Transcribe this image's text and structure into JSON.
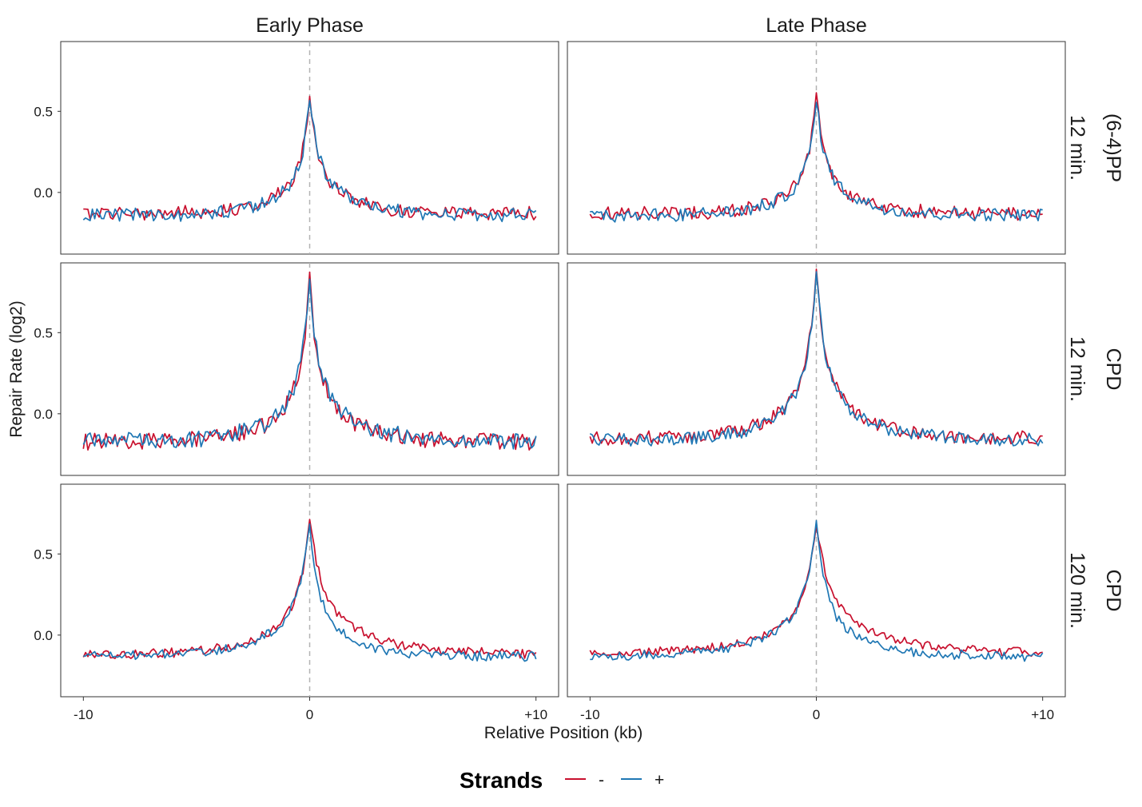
{
  "chart_data": {
    "type": "line",
    "facet_cols": [
      "Early Phase",
      "Late Phase"
    ],
    "facet_rows": [
      [
        "(6-4)PP",
        "12 min."
      ],
      [
        "CPD",
        "12 min."
      ],
      [
        "CPD",
        "120 min."
      ]
    ],
    "xlabel": "Relative Position (kb)",
    "ylabel": "Repair Rate (log2)",
    "x_ticks": [
      {
        "value": -10,
        "label": "-10"
      },
      {
        "value": 0,
        "label": "0"
      },
      {
        "value": 10,
        "label": "+10"
      }
    ],
    "y_ticks": [
      {
        "value": 0.0,
        "label": "0.0"
      },
      {
        "value": 0.5,
        "label": "0.5"
      }
    ],
    "xlim": [
      -11.0,
      11.0
    ],
    "ylim": [
      -0.38,
      0.93
    ],
    "reference_line_x": 0,
    "legend": {
      "title": "Strands",
      "position": "bottom",
      "entries": [
        {
          "label": "-",
          "color": "#c8102e"
        },
        {
          "label": "+",
          "color": "#1f77b4"
        }
      ]
    },
    "series_colors": {
      "-": "#c8102e",
      "+": "#1f77b4"
    },
    "series_profiles": [
      {
        "row": 0,
        "col": 0,
        "strand": "-",
        "baseline": -0.13,
        "peak": 0.57,
        "left_width": 0.9,
        "right_width": 0.9,
        "noise": 0.035
      },
      {
        "row": 0,
        "col": 0,
        "strand": "+",
        "baseline": -0.14,
        "peak": 0.58,
        "left_width": 0.85,
        "right_width": 1.0,
        "noise": 0.035
      },
      {
        "row": 0,
        "col": 1,
        "strand": "-",
        "baseline": -0.13,
        "peak": 0.6,
        "left_width": 0.8,
        "right_width": 0.9,
        "noise": 0.035
      },
      {
        "row": 0,
        "col": 1,
        "strand": "+",
        "baseline": -0.14,
        "peak": 0.57,
        "left_width": 0.85,
        "right_width": 0.95,
        "noise": 0.035
      },
      {
        "row": 1,
        "col": 0,
        "strand": "-",
        "baseline": -0.17,
        "peak": 0.83,
        "left_width": 0.85,
        "right_width": 0.9,
        "noise": 0.045
      },
      {
        "row": 1,
        "col": 0,
        "strand": "+",
        "baseline": -0.17,
        "peak": 0.82,
        "left_width": 0.9,
        "right_width": 1.0,
        "noise": 0.045
      },
      {
        "row": 1,
        "col": 1,
        "strand": "-",
        "baseline": -0.15,
        "peak": 0.87,
        "left_width": 0.95,
        "right_width": 1.0,
        "noise": 0.035
      },
      {
        "row": 1,
        "col": 1,
        "strand": "+",
        "baseline": -0.16,
        "peak": 0.87,
        "left_width": 0.95,
        "right_width": 1.0,
        "noise": 0.035
      },
      {
        "row": 2,
        "col": 0,
        "strand": "-",
        "baseline": -0.12,
        "peak": 0.71,
        "left_width": 1.1,
        "right_width": 1.4,
        "noise": 0.025
      },
      {
        "row": 2,
        "col": 0,
        "strand": "+",
        "baseline": -0.13,
        "peak": 0.71,
        "left_width": 1.1,
        "right_width": 0.9,
        "noise": 0.025
      },
      {
        "row": 2,
        "col": 1,
        "strand": "-",
        "baseline": -0.11,
        "peak": 0.68,
        "left_width": 1.2,
        "right_width": 1.5,
        "noise": 0.022
      },
      {
        "row": 2,
        "col": 1,
        "strand": "+",
        "baseline": -0.13,
        "peak": 0.7,
        "left_width": 1.2,
        "right_width": 1.0,
        "noise": 0.025
      }
    ]
  }
}
